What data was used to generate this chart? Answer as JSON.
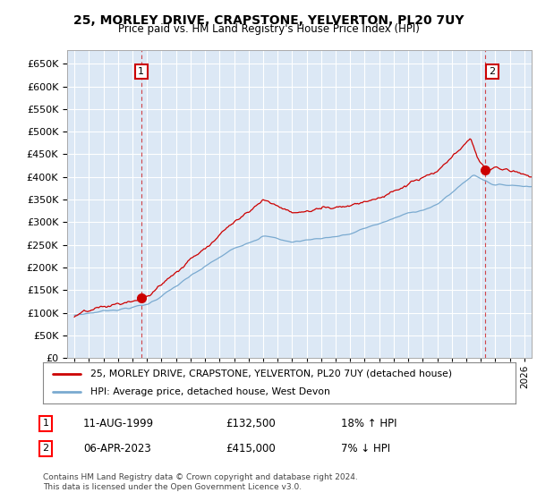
{
  "title": "25, MORLEY DRIVE, CRAPSTONE, YELVERTON, PL20 7UY",
  "subtitle": "Price paid vs. HM Land Registry's House Price Index (HPI)",
  "ytick_values": [
    0,
    50000,
    100000,
    150000,
    200000,
    250000,
    300000,
    350000,
    400000,
    450000,
    500000,
    550000,
    600000,
    650000
  ],
  "ylim": [
    0,
    680000
  ],
  "xlim_start": 1994.5,
  "xlim_end": 2026.5,
  "xticks": [
    1995,
    1996,
    1997,
    1998,
    1999,
    2000,
    2001,
    2002,
    2003,
    2004,
    2005,
    2006,
    2007,
    2008,
    2009,
    2010,
    2011,
    2012,
    2013,
    2014,
    2015,
    2016,
    2017,
    2018,
    2019,
    2020,
    2021,
    2022,
    2023,
    2024,
    2025,
    2026
  ],
  "sale1_x": 1999.6,
  "sale1_y": 132500,
  "sale2_x": 2023.27,
  "sale2_y": 415000,
  "sale_color": "#cc0000",
  "hpi_color": "#7aaad0",
  "plot_bg": "#dce8f5",
  "grid_color": "#ffffff",
  "legend_line1": "25, MORLEY DRIVE, CRAPSTONE, YELVERTON, PL20 7UY (detached house)",
  "legend_line2": "HPI: Average price, detached house, West Devon",
  "annotation1_date": "11-AUG-1999",
  "annotation1_price": "£132,500",
  "annotation1_hpi": "18% ↑ HPI",
  "annotation2_date": "06-APR-2023",
  "annotation2_price": "£415,000",
  "annotation2_hpi": "7% ↓ HPI",
  "footer": "Contains HM Land Registry data © Crown copyright and database right 2024.\nThis data is licensed under the Open Government Licence v3.0."
}
